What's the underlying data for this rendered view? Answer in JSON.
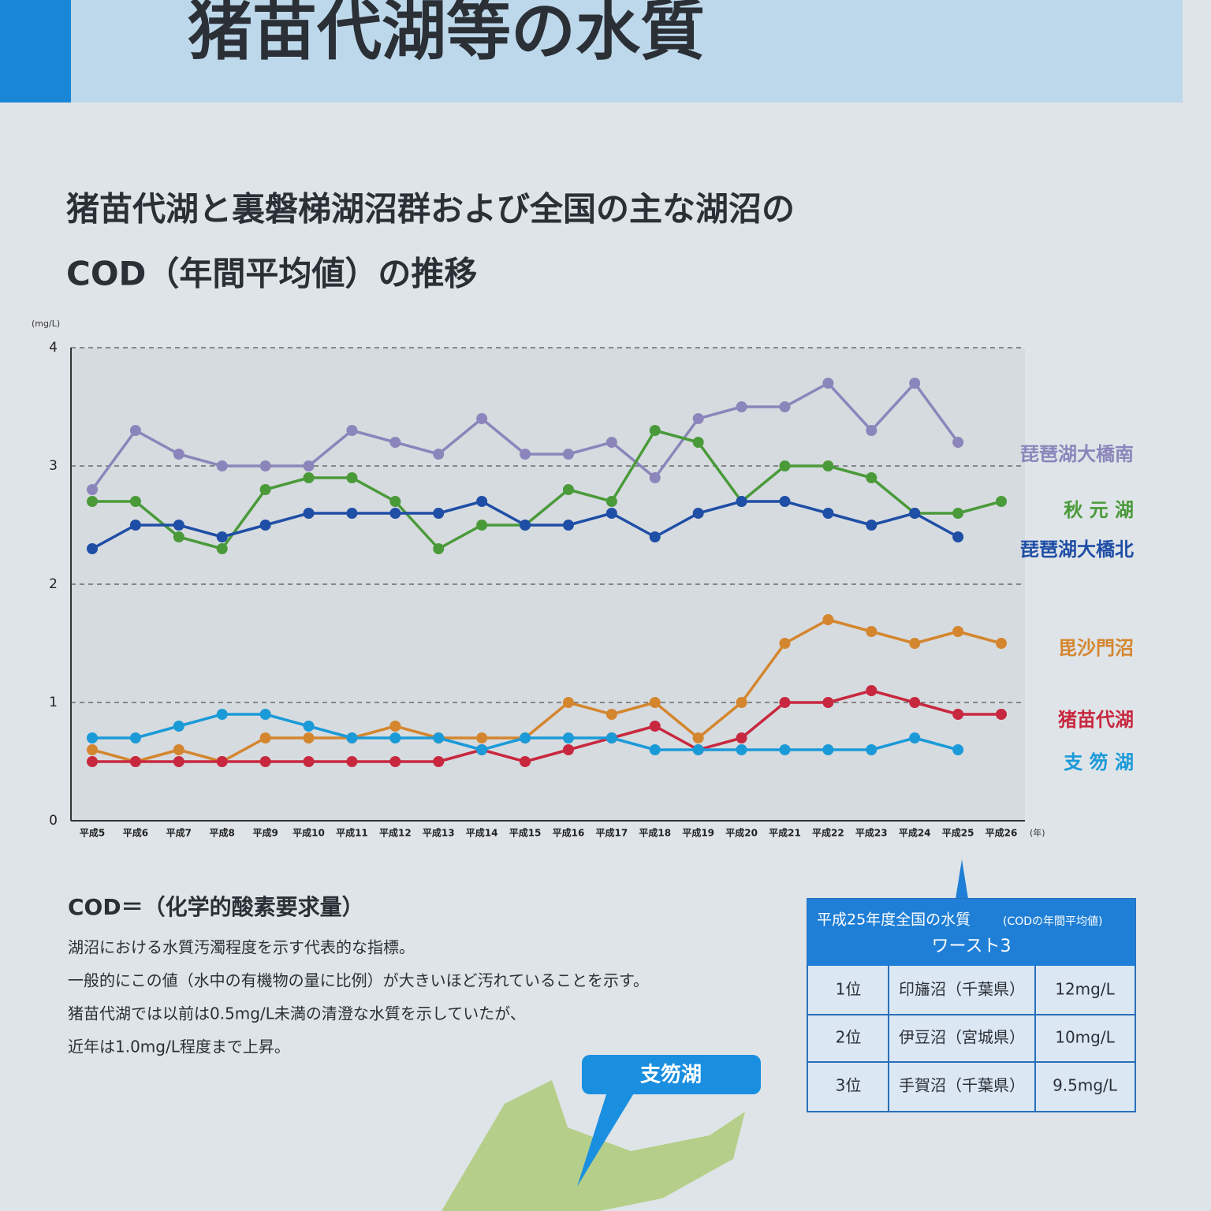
{
  "header": {
    "title": "猪苗代湖等の水質"
  },
  "chart_data": {
    "type": "line",
    "title": [
      "猪苗代湖と裏磐梯湖沼群および全国の主な湖沼の",
      "COD（年間平均値）の推移"
    ],
    "y_unit": "(mg/L)",
    "x_unit": "(年)",
    "categories": [
      "平成5",
      "平成6",
      "平成7",
      "平成8",
      "平成9",
      "平成10",
      "平成11",
      "平成12",
      "平成13",
      "平成14",
      "平成15",
      "平成16",
      "平成17",
      "平成18",
      "平成19",
      "平成20",
      "平成21",
      "平成22",
      "平成23",
      "平成24",
      "平成25",
      "平成26"
    ],
    "series": [
      {
        "name": "琵琶湖大橋南",
        "color": "#8a86bb",
        "values": [
          2.8,
          3.3,
          3.1,
          3.0,
          3.0,
          3.0,
          3.3,
          3.2,
          3.1,
          3.4,
          3.1,
          3.1,
          3.2,
          2.9,
          3.4,
          3.5,
          3.5,
          3.7,
          3.3,
          3.7,
          3.2,
          null
        ]
      },
      {
        "name": "秋 元 湖",
        "color": "#4a9a3a",
        "values": [
          2.7,
          2.7,
          2.4,
          2.3,
          2.8,
          2.9,
          2.9,
          2.7,
          2.3,
          2.5,
          2.5,
          2.8,
          2.7,
          3.3,
          3.2,
          2.7,
          3.0,
          3.0,
          2.9,
          2.6,
          2.6,
          2.7
        ]
      },
      {
        "name": "琵琶湖大橋北",
        "color": "#1f4ea6",
        "values": [
          2.3,
          2.5,
          2.5,
          2.4,
          2.5,
          2.6,
          2.6,
          2.6,
          2.6,
          2.7,
          2.5,
          2.5,
          2.6,
          2.4,
          2.6,
          2.7,
          2.7,
          2.6,
          2.5,
          2.6,
          2.4,
          null
        ]
      },
      {
        "name": "毘沙門沼",
        "color": "#d4862e",
        "values": [
          0.6,
          0.5,
          0.6,
          0.5,
          0.7,
          0.7,
          0.7,
          0.8,
          0.7,
          0.7,
          0.7,
          1.0,
          0.9,
          1.0,
          0.7,
          1.0,
          1.5,
          1.7,
          1.6,
          1.5,
          1.6,
          1.5
        ]
      },
      {
        "name": "猪苗代湖",
        "color": "#c8283f",
        "values": [
          0.5,
          0.5,
          0.5,
          0.5,
          0.5,
          0.5,
          0.5,
          0.5,
          0.5,
          0.6,
          0.5,
          0.6,
          0.7,
          0.8,
          0.6,
          0.7,
          1.0,
          1.0,
          1.1,
          1.0,
          0.9,
          0.9
        ]
      },
      {
        "name": "支 笏 湖",
        "color": "#1b9ad8",
        "values": [
          0.7,
          0.7,
          0.8,
          0.9,
          0.9,
          0.8,
          0.7,
          0.7,
          0.7,
          0.6,
          0.7,
          0.7,
          0.7,
          0.6,
          0.6,
          0.6,
          0.6,
          0.6,
          0.6,
          0.7,
          0.6,
          null
        ]
      }
    ],
    "ylim": [
      0,
      4
    ],
    "yticks": [
      0,
      1,
      2,
      3,
      4
    ],
    "grid": true
  },
  "notes": {
    "heading": "COD＝（化学的酸素要求量）",
    "lines": [
      "湖沼における水質汚濁程度を示す代表的な指標。",
      "一般的にこの値（水中の有機物の量に比例）が大きいほど汚れていることを示す。",
      "猪苗代湖では以前は0.5mg/L未満の清澄な水質を示していたが、",
      "近年は1.0mg/L程度まで上昇。"
    ]
  },
  "table": {
    "title": "平成25年度全国の水質",
    "title_note": "(CODの年間平均値)",
    "subtitle": "ワースト3",
    "rows": [
      [
        "1位",
        "印旛沼（千葉県）",
        "12mg/L"
      ],
      [
        "2位",
        "伊豆沼（宮城県）",
        "10mg/L"
      ],
      [
        "3位",
        "手賀沼（千葉県）",
        "9.5mg/L"
      ]
    ]
  },
  "map": {
    "label": "支笏湖"
  }
}
